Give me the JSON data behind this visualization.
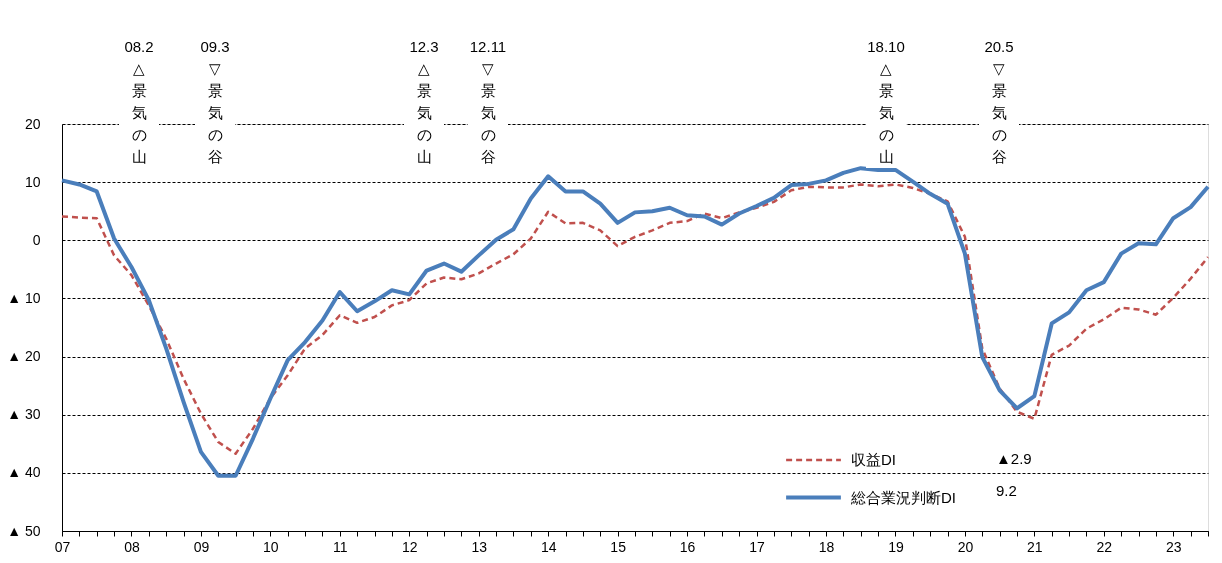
{
  "chart_data": {
    "type": "line",
    "x": [
      2007,
      2007.25,
      2007.5,
      2007.75,
      2008,
      2008.25,
      2008.5,
      2008.75,
      2009,
      2009.25,
      2009.5,
      2009.75,
      2010,
      2010.25,
      2010.5,
      2010.75,
      2011,
      2011.25,
      2011.5,
      2011.75,
      2012,
      2012.25,
      2012.5,
      2012.75,
      2013,
      2013.25,
      2013.5,
      2013.75,
      2014,
      2014.25,
      2014.5,
      2014.75,
      2015,
      2015.25,
      2015.5,
      2015.75,
      2016,
      2016.25,
      2016.5,
      2016.75,
      2017,
      2017.25,
      2017.5,
      2017.75,
      2018,
      2018.25,
      2018.5,
      2018.75,
      2019,
      2019.25,
      2019.5,
      2019.75,
      2020,
      2020.25,
      2020.5,
      2020.75,
      2021,
      2021.25,
      2021.5,
      2021.75,
      2022,
      2022.25,
      2022.5,
      2022.75,
      2023,
      2023.25,
      2023.5
    ],
    "series": [
      {
        "name": "収益DI",
        "color": "#c0504d",
        "line_style": "dashed",
        "values": [
          4.1,
          3.9,
          3.8,
          -2.6,
          -6.0,
          -11.2,
          -16.9,
          -23.8,
          -29.8,
          -34.7,
          -36.7,
          -32.4,
          -27.2,
          -23.2,
          -18.6,
          -16.3,
          -12.9,
          -14.2,
          -13.2,
          -11.2,
          -10.3,
          -7.4,
          -6.4,
          -6.7,
          -5.7,
          -4.0,
          -2.4,
          0.3,
          4.9,
          2.9,
          3.0,
          1.7,
          -1.0,
          0.6,
          1.7,
          3.0,
          3.3,
          4.6,
          3.8,
          4.8,
          5.6,
          6.6,
          8.6,
          9.2,
          9.1,
          9.1,
          9.6,
          9.3,
          9.6,
          9.0,
          8.0,
          6.7,
          0.6,
          -18.6,
          -25.5,
          -29.5,
          -30.7,
          -19.7,
          -18.1,
          -15.2,
          -13.6,
          -11.6,
          -11.9,
          -12.8,
          -9.9,
          -6.6,
          -2.9
        ]
      },
      {
        "name": "総合業況判断DI",
        "color": "#4a7ebb",
        "line_style": "solid",
        "values": [
          10.3,
          9.6,
          8.4,
          0.3,
          -4.6,
          -10.3,
          -18.6,
          -27.8,
          -36.4,
          -40.5,
          -40.5,
          -34.1,
          -27.2,
          -20.6,
          -17.5,
          -13.8,
          -8.9,
          -12.2,
          -10.5,
          -8.6,
          -9.3,
          -5.2,
          -4.0,
          -5.4,
          -2.6,
          0.1,
          1.9,
          7.2,
          11.0,
          8.4,
          8.4,
          6.3,
          3.0,
          4.8,
          5.0,
          5.6,
          4.3,
          4.1,
          2.7,
          4.6,
          5.9,
          7.3,
          9.5,
          9.7,
          10.3,
          11.6,
          12.4,
          12.1,
          12.1,
          10.1,
          8.0,
          6.3,
          -2.3,
          -20.1,
          -25.8,
          -28.9,
          -26.8,
          -14.3,
          -12.4,
          -8.6,
          -7.2,
          -2.3,
          -0.5,
          -0.7,
          3.8,
          5.7,
          9.2
        ]
      }
    ],
    "xlim": [
      2007,
      2023.5
    ],
    "xticks": [
      {
        "value": 2007,
        "label": "07"
      },
      {
        "value": 2007.25,
        "label": null
      },
      {
        "value": 2007.5,
        "label": null
      },
      {
        "value": 2007.75,
        "label": null
      },
      {
        "value": 2008,
        "label": "08"
      },
      {
        "value": 2008.25,
        "label": null
      },
      {
        "value": 2008.5,
        "label": null
      },
      {
        "value": 2008.75,
        "label": null
      },
      {
        "value": 2009,
        "label": "09"
      },
      {
        "value": 2009.25,
        "label": null
      },
      {
        "value": 2009.5,
        "label": null
      },
      {
        "value": 2009.75,
        "label": null
      },
      {
        "value": 2010,
        "label": "10"
      },
      {
        "value": 2010.25,
        "label": null
      },
      {
        "value": 2010.5,
        "label": null
      },
      {
        "value": 2010.75,
        "label": null
      },
      {
        "value": 2011,
        "label": "11"
      },
      {
        "value": 2011.25,
        "label": null
      },
      {
        "value": 2011.5,
        "label": null
      },
      {
        "value": 2011.75,
        "label": null
      },
      {
        "value": 2012,
        "label": "12"
      },
      {
        "value": 2012.25,
        "label": null
      },
      {
        "value": 2012.5,
        "label": null
      },
      {
        "value": 2012.75,
        "label": null
      },
      {
        "value": 2013,
        "label": "13"
      },
      {
        "value": 2013.25,
        "label": null
      },
      {
        "value": 2013.5,
        "label": null
      },
      {
        "value": 2013.75,
        "label": null
      },
      {
        "value": 2014,
        "label": "14"
      },
      {
        "value": 2014.25,
        "label": null
      },
      {
        "value": 2014.5,
        "label": null
      },
      {
        "value": 2014.75,
        "label": null
      },
      {
        "value": 2015,
        "label": "15"
      },
      {
        "value": 2015.25,
        "label": null
      },
      {
        "value": 2015.5,
        "label": null
      },
      {
        "value": 2015.75,
        "label": null
      },
      {
        "value": 2016,
        "label": "16"
      },
      {
        "value": 2016.25,
        "label": null
      },
      {
        "value": 2016.5,
        "label": null
      },
      {
        "value": 2016.75,
        "label": null
      },
      {
        "value": 2017,
        "label": "17"
      },
      {
        "value": 2017.25,
        "label": null
      },
      {
        "value": 2017.5,
        "label": null
      },
      {
        "value": 2017.75,
        "label": null
      },
      {
        "value": 2018,
        "label": "18"
      },
      {
        "value": 2018.25,
        "label": null
      },
      {
        "value": 2018.5,
        "label": null
      },
      {
        "value": 2018.75,
        "label": null
      },
      {
        "value": 2019,
        "label": "19"
      },
      {
        "value": 2019.25,
        "label": null
      },
      {
        "value": 2019.5,
        "label": null
      },
      {
        "value": 2019.75,
        "label": null
      },
      {
        "value": 2020,
        "label": "20"
      },
      {
        "value": 2020.25,
        "label": null
      },
      {
        "value": 2020.5,
        "label": null
      },
      {
        "value": 2020.75,
        "label": null
      },
      {
        "value": 2021,
        "label": "21"
      },
      {
        "value": 2021.25,
        "label": null
      },
      {
        "value": 2021.5,
        "label": null
      },
      {
        "value": 2021.75,
        "label": null
      },
      {
        "value": 2022,
        "label": "22"
      },
      {
        "value": 2022.25,
        "label": null
      },
      {
        "value": 2022.5,
        "label": null
      },
      {
        "value": 2022.75,
        "label": null
      },
      {
        "value": 2023,
        "label": "23"
      },
      {
        "value": 2023.25,
        "label": null
      },
      {
        "value": 2023.5,
        "label": null
      }
    ],
    "ylim": [
      -50,
      20
    ],
    "yticks": [
      {
        "value": -50,
        "label": "▲ 50"
      },
      {
        "value": -40,
        "label": "▲ 40"
      },
      {
        "value": -30,
        "label": "▲ 30"
      },
      {
        "value": -20,
        "label": "▲ 20"
      },
      {
        "value": -10,
        "label": "▲ 10"
      },
      0,
      10,
      20
    ],
    "grid": "y",
    "legend": "bottom right",
    "annotations": [
      "08.2\n△\n景気の山",
      "09.3\n▽\n景気の谷",
      "12.3\n△\n景気の山",
      "12.11\n▽\n景気の谷",
      "18.10\n△\n景気の山",
      "20.5\n▽\n景気の谷",
      "▲2.9",
      "9.2"
    ]
  }
}
